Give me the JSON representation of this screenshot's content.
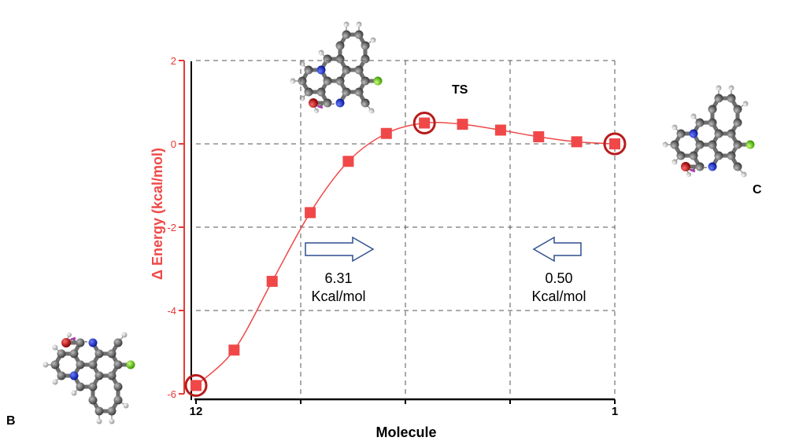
{
  "chart_data": {
    "type": "line",
    "xlabel": "Molecule",
    "ylabel": "Δ Energy (kcal/mol)",
    "x_ticks": [
      "12",
      "1"
    ],
    "xlim": [
      12,
      1
    ],
    "ylim": [
      -6,
      2
    ],
    "y_ticks": [
      "2",
      "0",
      "-2",
      "-4",
      "-6"
    ],
    "grid": true,
    "series": [
      {
        "x": [
          12,
          11,
          10,
          9,
          8,
          7,
          6,
          5,
          4,
          3,
          2,
          1
        ],
        "values": [
          -5.8,
          -4.95,
          -3.3,
          -1.65,
          -0.42,
          0.25,
          0.5,
          0.47,
          0.33,
          0.17,
          0.05,
          0.0
        ]
      }
    ],
    "highlighted_points": [
      12,
      6,
      1
    ],
    "colors": {
      "series": "#f04848",
      "marker": "#f04848",
      "highlight": "#b71c1c",
      "yaxis": "#e53935",
      "grid": "#555555"
    }
  },
  "annotations": {
    "ts_label": "TS",
    "b_label": "B",
    "c_label": "C",
    "forward_energy": {
      "value": "6.31",
      "unit": "Kcal/mol"
    },
    "reverse_energy": {
      "value": "0.50",
      "unit": "Kcal/mol"
    }
  },
  "molecules": {
    "icons": [
      "molecule-b-structure-icon",
      "molecule-ts-structure-icon",
      "molecule-c-structure-icon"
    ]
  }
}
